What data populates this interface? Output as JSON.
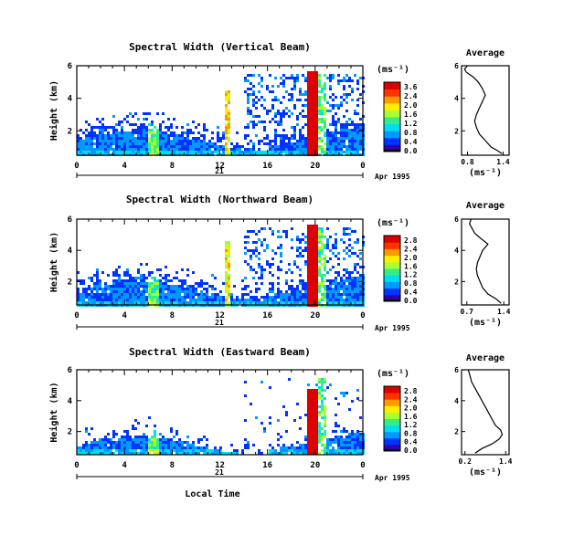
{
  "chart_data": [
    {
      "type": "heatmap",
      "title": "Spectral Width (Vertical Beam)",
      "ylabel": "Height (km)",
      "yticks": [
        "6",
        "4",
        "2"
      ],
      "xticks": [
        "0",
        "4",
        "8",
        "12",
        "16",
        "20",
        "0"
      ],
      "ylim": [
        0.5,
        6
      ],
      "xlim": [
        0,
        24
      ],
      "date_day": "21",
      "date_label": "Apr 1995",
      "colorbar": {
        "unit": "(ms⁻¹)",
        "ticks": [
          "3.6",
          "2.4",
          "2.0",
          "1.6",
          "1.2",
          "0.8",
          "0.4",
          "0.0"
        ],
        "range": [
          0,
          3.6
        ]
      },
      "average": {
        "title": "Average",
        "xlabel": "(ms⁻¹)",
        "xticks": [
          "0.8",
          "1.4"
        ],
        "xlim": [
          0.7,
          1.5
        ],
        "yticks": [
          "6",
          "4",
          "2"
        ],
        "profile": [
          [
            1.38,
            0.6
          ],
          [
            1.3,
            0.8
          ],
          [
            1.2,
            1.0
          ],
          [
            1.1,
            1.4
          ],
          [
            1.0,
            1.8
          ],
          [
            0.95,
            2.2
          ],
          [
            0.92,
            2.6
          ],
          [
            0.95,
            3.0
          ],
          [
            1.0,
            3.4
          ],
          [
            1.05,
            3.8
          ],
          [
            1.1,
            4.2
          ],
          [
            1.05,
            4.6
          ],
          [
            0.98,
            5.0
          ],
          [
            0.9,
            5.3
          ],
          [
            0.78,
            5.6
          ],
          [
            0.75,
            5.8
          ],
          [
            0.8,
            6.0
          ]
        ]
      }
    },
    {
      "type": "heatmap",
      "title": "Spectral Width (Northward Beam)",
      "ylabel": "Height (km)",
      "yticks": [
        "6",
        "4",
        "2"
      ],
      "xticks": [
        "0",
        "4",
        "8",
        "12",
        "16",
        "20",
        "0"
      ],
      "ylim": [
        0.5,
        6
      ],
      "xlim": [
        0,
        24
      ],
      "date_day": "21",
      "date_label": "Apr 1995",
      "colorbar": {
        "unit": "(ms⁻¹)",
        "ticks": [
          "2.8",
          "2.4",
          "2.0",
          "1.6",
          "1.2",
          "0.8",
          "0.4",
          "0.0"
        ],
        "range": [
          0,
          2.8
        ]
      },
      "average": {
        "title": "Average",
        "xlabel": "(ms⁻¹)",
        "xticks": [
          "0.7",
          "1.4"
        ],
        "xlim": [
          0.6,
          1.5
        ],
        "yticks": [
          "6",
          "4",
          "2"
        ],
        "profile": [
          [
            1.35,
            0.6
          ],
          [
            1.25,
            0.9
          ],
          [
            1.1,
            1.2
          ],
          [
            1.0,
            1.6
          ],
          [
            0.95,
            2.0
          ],
          [
            0.9,
            2.4
          ],
          [
            0.88,
            2.8
          ],
          [
            0.9,
            3.2
          ],
          [
            0.95,
            3.6
          ],
          [
            1.0,
            4.0
          ],
          [
            1.1,
            4.4
          ],
          [
            0.95,
            4.8
          ],
          [
            0.85,
            5.1
          ],
          [
            0.8,
            5.4
          ],
          [
            0.75,
            5.7
          ],
          [
            0.78,
            6.0
          ]
        ]
      }
    },
    {
      "type": "heatmap",
      "title": "Spectral Width (Eastward Beam)",
      "ylabel": "Height (km)",
      "xlabel": "Local Time",
      "yticks": [
        "6",
        "4",
        "2"
      ],
      "xticks": [
        "0",
        "4",
        "8",
        "12",
        "16",
        "20",
        "0"
      ],
      "ylim": [
        0.5,
        6
      ],
      "xlim": [
        0,
        24
      ],
      "date_day": "21",
      "date_label": "Apr 1995",
      "colorbar": {
        "unit": "(ms⁻¹)",
        "ticks": [
          "2.8",
          "2.4",
          "2.0",
          "1.6",
          "1.2",
          "0.8",
          "0.4",
          "0.0"
        ],
        "range": [
          0,
          2.8
        ]
      },
      "average": {
        "title": "Average",
        "xlabel": "(ms⁻¹)",
        "xticks": [
          "0.2",
          "1.4"
        ],
        "xlim": [
          0.1,
          1.5
        ],
        "yticks": [
          "6",
          "4",
          "2"
        ],
        "profile": [
          [
            0.5,
            0.6
          ],
          [
            0.7,
            0.9
          ],
          [
            1.0,
            1.2
          ],
          [
            1.2,
            1.5
          ],
          [
            1.3,
            1.8
          ],
          [
            1.25,
            2.1
          ],
          [
            1.1,
            2.4
          ],
          [
            1.0,
            2.8
          ],
          [
            0.9,
            3.2
          ],
          [
            0.8,
            3.6
          ],
          [
            0.7,
            4.0
          ],
          [
            0.6,
            4.4
          ],
          [
            0.5,
            4.8
          ],
          [
            0.4,
            5.2
          ],
          [
            0.35,
            5.6
          ],
          [
            0.3,
            6.0
          ]
        ]
      }
    }
  ],
  "colors": {
    "scale": [
      "#3300aa",
      "#0033ff",
      "#0099ff",
      "#00ddee",
      "#33ee88",
      "#aaff33",
      "#ffee00",
      "#ff9900",
      "#ff3300",
      "#dd0000"
    ]
  }
}
